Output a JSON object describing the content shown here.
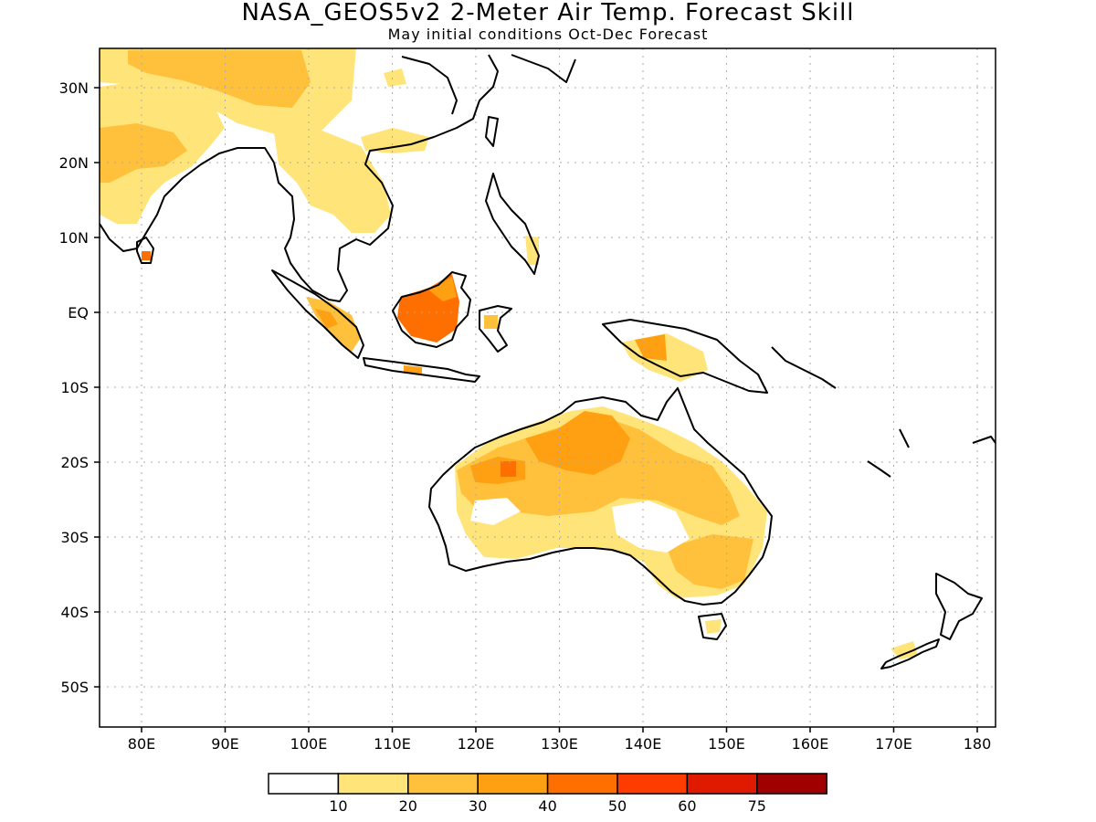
{
  "title": "NASA_GEOS5v2 2-Meter Air Temp. Forecast Skill",
  "subtitle": "May initial conditions  Oct-Dec Forecast",
  "lon_labels": [
    "80E",
    "90E",
    "100E",
    "110E",
    "120E",
    "130E",
    "140E",
    "150E",
    "160E",
    "170E",
    "180"
  ],
  "lat_labels": [
    "30N",
    "20N",
    "10N",
    "EQ",
    "10S",
    "20S",
    "30S",
    "40S",
    "50S"
  ],
  "colorbar": {
    "labels": [
      "10",
      "20",
      "30",
      "40",
      "50",
      "60",
      "75"
    ],
    "colors": [
      "#ffffff",
      "#ffe47a",
      "#ffc03c",
      "#ffa012",
      "#ff6f00",
      "#ff3c00",
      "#e01a00",
      "#a00000"
    ]
  },
  "colors": {
    "skill_10_20": "#ffe47a",
    "skill_20_30": "#ffc03c",
    "skill_30_40": "#ffa012",
    "skill_40_50": "#ff6f00",
    "coastline": "#000000",
    "grid": "#aaaaaa"
  }
}
